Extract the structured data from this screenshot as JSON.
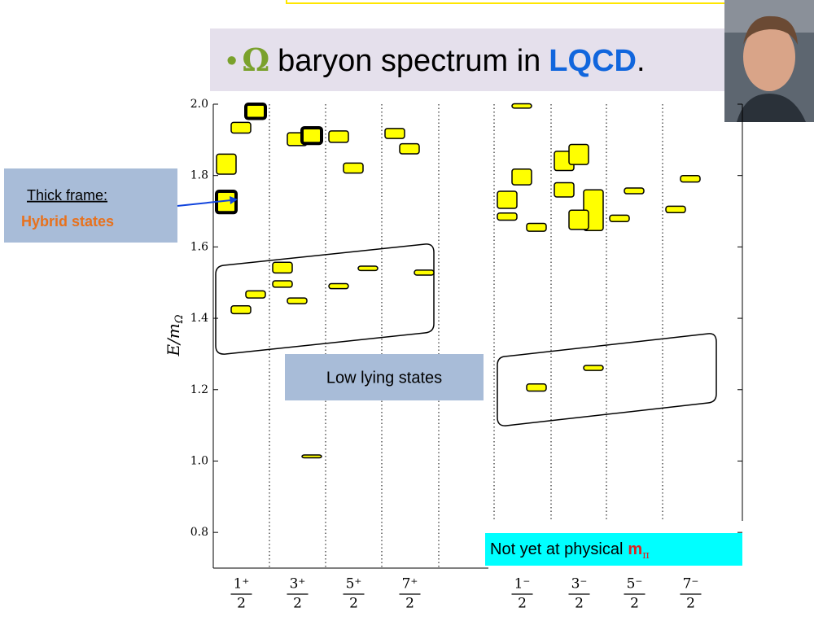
{
  "chart_data": {
    "type": "levels",
    "title": {
      "bullet": "•",
      "symbol": "Ω",
      "text": "baryon spectrum in",
      "highlight": "LQCD",
      "end": "."
    },
    "ylabel": {
      "text": "E/m",
      "subscript": "Ω"
    },
    "categories": [
      {
        "numerator": "1⁺",
        "denominator": "2"
      },
      {
        "numerator": "3⁺",
        "denominator": "2"
      },
      {
        "numerator": "5⁺",
        "denominator": "2"
      },
      {
        "numerator": "7⁺",
        "denominator": "2"
      },
      {
        "numerator": "1⁻",
        "denominator": "2"
      },
      {
        "numerator": "3⁻",
        "denominator": "2"
      },
      {
        "numerator": "5⁻",
        "denominator": "2"
      },
      {
        "numerator": "7⁻",
        "denominator": "2"
      }
    ],
    "values": [
      [
        1.832,
        1.934,
        1.98,
        1.726,
        1.424,
        1.467
      ],
      [
        1.542,
        1.902,
        1.912,
        1.496,
        1.449,
        1.013
      ],
      [
        1.909,
        1.821,
        1.54,
        1.49
      ],
      [
        1.918,
        1.875,
        1.528
      ],
      [
        1.732,
        1.796,
        1.655,
        1.685,
        1.995,
        1.206
      ],
      [
        1.841,
        1.859,
        1.703,
        1.76,
        1.676,
        1.261
      ],
      [
        1.68,
        1.757
      ],
      [
        1.705,
        1.791
      ]
    ],
    "errors": [
      [
        0.028,
        0.015,
        0.02,
        0.03,
        0.011,
        0.01
      ],
      [
        0.015,
        0.018,
        0.022,
        0.009,
        0.008,
        0.004
      ],
      [
        0.016,
        0.014,
        0.006,
        0.007
      ],
      [
        0.014,
        0.014,
        0.007
      ],
      [
        0.024,
        0.022,
        0.011,
        0.01,
        0.006,
        0.01
      ],
      [
        0.027,
        0.028,
        0.057,
        0.02,
        0.027,
        0.007
      ],
      [
        0.009,
        0.008
      ],
      [
        0.009,
        0.009
      ]
    ],
    "hybrid": [
      [
        false,
        false,
        true,
        true,
        false,
        false
      ],
      [
        false,
        false,
        true,
        false,
        false,
        false
      ],
      [
        false,
        false,
        false,
        false
      ],
      [
        false,
        false,
        false
      ],
      [
        false,
        false,
        false,
        false,
        false,
        false
      ],
      [
        false,
        false,
        false,
        false,
        false,
        false
      ],
      [
        false,
        false
      ],
      [
        false,
        false
      ]
    ],
    "color": "#ffff00",
    "ylim": [
      0.7,
      2.0
    ],
    "yticks": [
      0.8,
      {
        "value": 1,
        "label": "1.0"
      },
      1.2,
      1.4,
      1.6,
      1.8,
      {
        "value": 2,
        "label": "2.0"
      }
    ],
    "annotations": {
      "callout": {
        "label": "Thick frame:",
        "value": "Hybrid states"
      },
      "low": "Low lying states",
      "note": {
        "text": "Not yet at physical",
        "symbol": "m",
        "subscript": "π"
      }
    }
  }
}
